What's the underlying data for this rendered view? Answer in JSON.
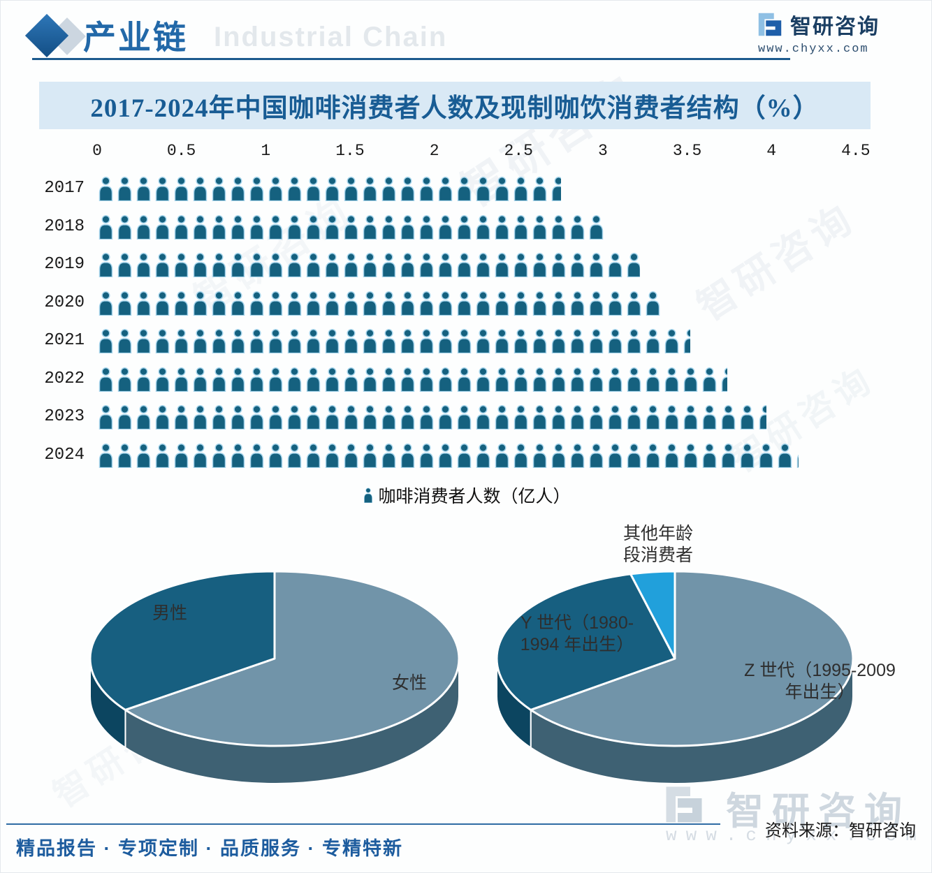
{
  "header": {
    "section_title": "产业链",
    "watermark_en": "Industrial Chain",
    "brand": {
      "name": "智研咨询",
      "url": "www.chyxx.com"
    }
  },
  "chart": {
    "title": "2017-2024年中国咖啡消费者人数及现制咖饮消费者结构（%）"
  },
  "chart_data": [
    {
      "type": "pictograph-bar",
      "legend": "咖啡消费者人数（亿人）",
      "unit": "亿人",
      "categories": [
        "2017",
        "2018",
        "2019",
        "2020",
        "2021",
        "2022",
        "2023",
        "2024"
      ],
      "values": [
        2.75,
        3.01,
        3.22,
        3.34,
        3.52,
        3.74,
        3.97,
        4.16
      ],
      "xlim": [
        0,
        4.5
      ],
      "x_tick_labels": [
        "0",
        "0.5",
        "1",
        "1.5",
        "2",
        "2.5",
        "3",
        "3.5",
        "4",
        "4.5"
      ],
      "icon": "person-icon",
      "grid": false,
      "legend_position": "bottom"
    },
    {
      "type": "pie",
      "style": "3d",
      "slices": [
        {
          "label": "女性",
          "display_lines": [
            "女性"
          ],
          "value": 65,
          "color": "#7194a9",
          "side_color": "#3e6173"
        },
        {
          "label": "男性",
          "display_lines": [
            "男性"
          ],
          "value": 35,
          "color": "#175f80",
          "side_color": "#0c4560"
        }
      ]
    },
    {
      "type": "pie",
      "style": "3d",
      "slices": [
        {
          "label": "Z 世代（1995-2009 年出生）",
          "display_lines": [
            "Z 世代（1995-2009",
            "年出生）"
          ],
          "value": 65,
          "color": "#7194a9",
          "side_color": "#3e6173"
        },
        {
          "label": "Y 世代（1980-1994 年出生）",
          "display_lines": [
            "Y 世代（1980-",
            "1994 年出生）"
          ],
          "value": 31,
          "color": "#175f80",
          "side_color": "#0c4560"
        },
        {
          "label": "其他年龄段消费者",
          "display_lines": [
            "其他年龄",
            "段消费者"
          ],
          "value": 4,
          "color": "#21a0db",
          "side_color": "#14719c"
        }
      ]
    }
  ],
  "footer": {
    "slogan": "精品报告 · 专项定制 · 品质服务 · 专精特新",
    "source": "资料来源：智研咨询"
  },
  "watermark": {
    "brand": "智研咨询",
    "url": "www.chyxx.com"
  },
  "colors": {
    "accent_blue": "#1c5a8e",
    "title_band_bg": "#d9e9f5",
    "title_text": "#185c94",
    "icon_fill": "#15617f",
    "icon_stroke": "#a7d5ec",
    "pie_dark": "#175f80",
    "pie_light": "#7194a9",
    "pie_bright": "#21a0db",
    "footer_text": "#1d5c9e"
  }
}
